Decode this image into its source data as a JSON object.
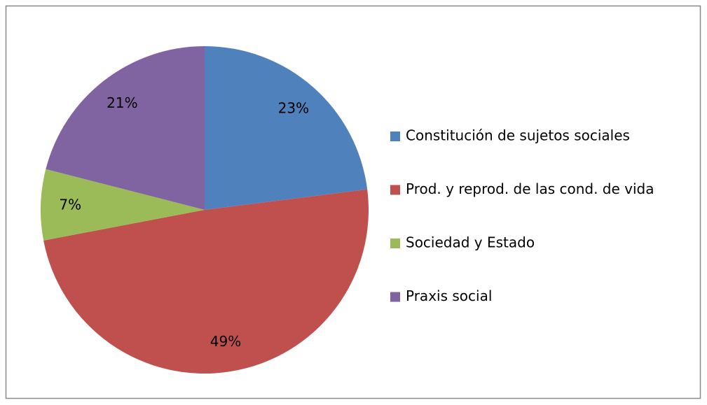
{
  "chart_data": {
    "type": "pie",
    "categories": [
      "Constitución de sujetos sociales",
      "Prod. y reprod. de las cond. de vida",
      "Sociedad y Estado",
      "Praxis social"
    ],
    "values": [
      23,
      49,
      7,
      21
    ],
    "value_labels": [
      "23%",
      "49%",
      "7%",
      "21%"
    ],
    "colors": [
      "#4f81bd",
      "#c0504d",
      "#9bbb59",
      "#8064a2"
    ],
    "legend": "right"
  }
}
